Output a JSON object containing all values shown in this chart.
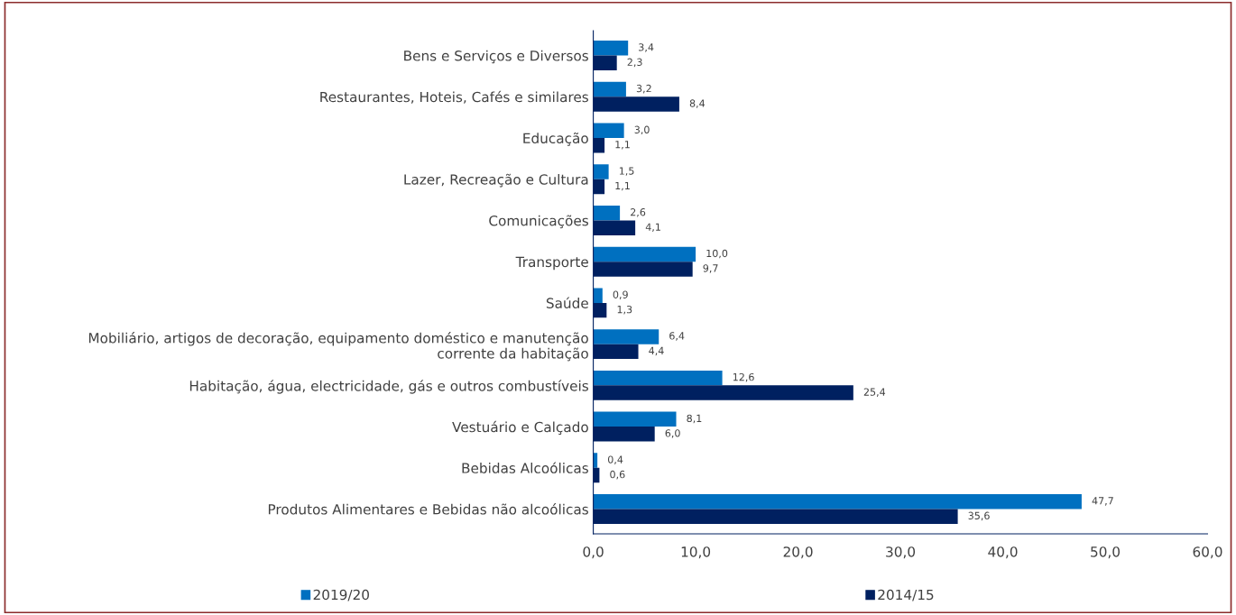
{
  "chart_data": {
    "type": "bar",
    "orientation": "horizontal",
    "categories": [
      "Bens e Serviços e Diversos",
      "Restaurantes, Hoteis, Cafés e similares",
      "Educação",
      "Lazer, Recreação e Cultura",
      "Comunicações",
      "Transporte",
      "Saúde",
      "Mobiliário, artigos de decoração, equipamento doméstico e manutenção corrente da habitação",
      "Habitação, água, electricidade, gás e outros combustíveis",
      "Vestuário e Calçado",
      "Bebidas Alcoólicas",
      "Produtos Alimentares e Bebidas não alcoólicas"
    ],
    "series": [
      {
        "name": "2019/20",
        "color": "#0070c0",
        "values": [
          3.4,
          3.2,
          3.0,
          1.5,
          2.6,
          10.0,
          0.9,
          6.4,
          12.6,
          8.1,
          0.4,
          47.7
        ],
        "value_labels": [
          "3,4",
          "3,2",
          "3,0",
          "1,5",
          "2,6",
          "10,0",
          "0,9",
          "6,4",
          "12,6",
          "8,1",
          "0,4",
          "47,7"
        ]
      },
      {
        "name": "2014/15",
        "color": "#002060",
        "values": [
          2.3,
          8.4,
          1.1,
          1.1,
          4.1,
          9.7,
          1.3,
          4.4,
          25.4,
          6.0,
          0.6,
          35.6
        ],
        "value_labels": [
          "2,3",
          "8,4",
          "1,1",
          "1,1",
          "4,1",
          "9,7",
          "1,3",
          "4,4",
          "25,4",
          "6,0",
          "0,6",
          "35,6"
        ]
      }
    ],
    "xlim": [
      0,
      60
    ],
    "xticks": [
      {
        "value": 0,
        "label": "0,0"
      },
      {
        "value": 10,
        "label": "10,0"
      },
      {
        "value": 20,
        "label": "20,0"
      },
      {
        "value": 30,
        "label": "30,0"
      },
      {
        "value": 40,
        "label": "40,0"
      },
      {
        "value": 50,
        "label": "50,0"
      },
      {
        "value": 60,
        "label": "60,0"
      }
    ],
    "grid": false,
    "legend": "bottom"
  }
}
